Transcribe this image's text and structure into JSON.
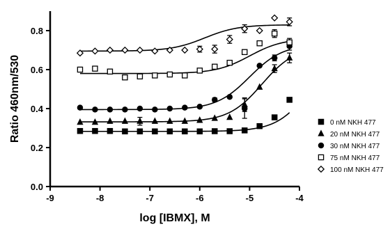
{
  "chart_data": {
    "type": "scatter",
    "title": "",
    "xlabel": "log [IBMX], M",
    "ylabel": "Ratio 460nm/530",
    "xlim": [
      -9,
      -4
    ],
    "ylim": [
      0.0,
      0.9
    ],
    "x_ticks": [
      -9,
      -8,
      -7,
      -6,
      -5,
      -4
    ],
    "x_tick_labels": [
      "-9",
      "-8",
      "-7",
      "-6",
      "-5",
      "-4"
    ],
    "y_ticks": [
      0.0,
      0.2,
      0.4,
      0.6,
      0.8
    ],
    "y_tick_labels": [
      "0.0",
      "0.2",
      "0.4",
      "0.6",
      "0.8"
    ],
    "grid": false,
    "legend_position": "bottom-right",
    "series": [
      {
        "name": "0 nM NKH 477",
        "marker": "square-filled",
        "x": [
          -8.4,
          -8.1,
          -7.8,
          -7.5,
          -7.2,
          -6.9,
          -6.6,
          -6.3,
          -6.0,
          -5.7,
          -5.4,
          -5.1,
          -4.8,
          -4.5,
          -4.2
        ],
        "y": [
          0.285,
          0.285,
          0.285,
          0.283,
          0.283,
          0.283,
          0.283,
          0.283,
          0.283,
          0.284,
          0.284,
          0.288,
          0.31,
          0.355,
          0.445
        ],
        "err": [
          0,
          0,
          0,
          0,
          0,
          0,
          0,
          0,
          0,
          0,
          0,
          0,
          0,
          0.008,
          0
        ],
        "fit": {
          "bottom": 0.283,
          "top": 0.75,
          "logec50": -3.75,
          "hill": 1.3
        }
      },
      {
        "name": "20 nM NKH 477",
        "marker": "triangle-filled",
        "x": [
          -8.4,
          -8.1,
          -7.8,
          -7.5,
          -7.2,
          -6.9,
          -6.6,
          -6.3,
          -6.0,
          -5.7,
          -5.4,
          -5.1,
          -4.8,
          -4.5,
          -4.2
        ],
        "y": [
          0.33,
          0.33,
          0.335,
          0.335,
          0.335,
          0.335,
          0.335,
          0.335,
          0.34,
          0.35,
          0.355,
          0.42,
          0.51,
          0.605,
          0.66
        ],
        "err": [
          0,
          0,
          0,
          0,
          0.02,
          0,
          0,
          0,
          0,
          0,
          0,
          0.035,
          0,
          0.02,
          0.025
        ],
        "fit": {
          "bottom": 0.332,
          "top": 0.72,
          "logec50": -4.75,
          "hill": 1.3
        }
      },
      {
        "name": "30 nM NKH 477",
        "marker": "circle-filled",
        "x": [
          -8.4,
          -8.1,
          -7.8,
          -7.5,
          -7.2,
          -6.9,
          -6.6,
          -6.3,
          -6.0,
          -5.7,
          -5.4,
          -5.1,
          -4.8,
          -4.5,
          -4.2
        ],
        "y": [
          0.405,
          0.395,
          0.395,
          0.395,
          0.4,
          0.395,
          0.4,
          0.405,
          0.41,
          0.445,
          0.46,
          0.4,
          0.62,
          0.66,
          0.72
        ],
        "err": [
          0,
          0,
          0,
          0,
          0,
          0,
          0,
          0,
          0,
          0.01,
          0,
          0.05,
          0,
          0.015,
          0.02
        ],
        "fit": {
          "bottom": 0.395,
          "top": 0.73,
          "logec50": -5.0,
          "hill": 1.3
        }
      },
      {
        "name": "75 nM NKH 477",
        "marker": "square-open",
        "x": [
          -8.4,
          -8.1,
          -7.8,
          -7.5,
          -7.2,
          -6.9,
          -6.6,
          -6.3,
          -6.0,
          -5.7,
          -5.4,
          -5.1,
          -4.8,
          -4.5,
          -4.2
        ],
        "y": [
          0.6,
          0.605,
          0.59,
          0.56,
          0.565,
          0.57,
          0.575,
          0.57,
          0.595,
          0.615,
          0.635,
          0.69,
          0.735,
          0.785,
          0.74
        ],
        "err": [
          0,
          0,
          0,
          0,
          0,
          0,
          0,
          0,
          0,
          0,
          0,
          0,
          0,
          0.02,
          0.02
        ],
        "fit": {
          "bottom": 0.58,
          "top": 0.76,
          "logec50": -5.0,
          "hill": 1.3
        }
      },
      {
        "name": "100 nM NKH 477",
        "marker": "diamond-open",
        "x": [
          -8.4,
          -8.1,
          -7.8,
          -7.5,
          -7.2,
          -6.9,
          -6.6,
          -6.3,
          -6.0,
          -5.7,
          -5.4,
          -5.1,
          -4.8,
          -4.5,
          -4.2
        ],
        "y": [
          0.685,
          0.695,
          0.7,
          0.7,
          0.7,
          0.695,
          0.7,
          0.7,
          0.705,
          0.705,
          0.755,
          0.81,
          0.8,
          0.865,
          0.845
        ],
        "err": [
          0,
          0,
          0,
          0,
          0,
          0,
          0,
          0,
          0.015,
          0.02,
          0.02,
          0.02,
          0,
          0,
          0.02
        ],
        "fit": {
          "bottom": 0.695,
          "top": 0.83,
          "logec50": -5.9,
          "hill": 1.3
        }
      }
    ]
  }
}
